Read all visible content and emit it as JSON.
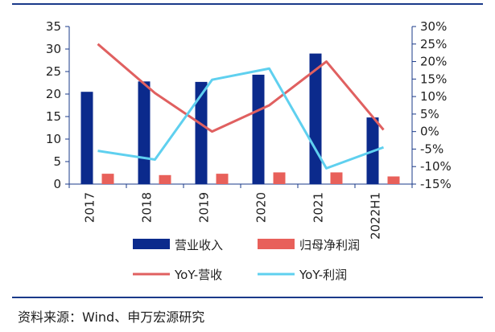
{
  "colors": {
    "revenue_bar": "#0b2a8c",
    "profit_bar": "#e8605a",
    "yoy_revenue_line": "#e06060",
    "yoy_profit_line": "#5fd0ef",
    "frame": "#1a3a8a"
  },
  "chart_data": {
    "type": "bar+line",
    "categories": [
      "2017",
      "2018",
      "2019",
      "2020",
      "2021",
      "2022H1"
    ],
    "left_axis": {
      "ylim": [
        0,
        35
      ],
      "ticks": [
        "0",
        "5",
        "10",
        "15",
        "20",
        "25",
        "30",
        "35"
      ]
    },
    "right_axis": {
      "ylim": [
        -15,
        30
      ],
      "unit": "%",
      "ticks": [
        "-15%",
        "-10%",
        "-5%",
        "0%",
        "5%",
        "10%",
        "15%",
        "20%",
        "25%",
        "30%"
      ]
    },
    "series": [
      {
        "name": "营业收入",
        "type": "bar",
        "axis": "left",
        "values": [
          20.5,
          22.8,
          22.7,
          24.3,
          29.0,
          14.8
        ]
      },
      {
        "name": "归母净利润",
        "type": "bar",
        "axis": "left",
        "values": [
          2.3,
          2.0,
          2.3,
          2.6,
          2.6,
          1.7
        ]
      },
      {
        "name": "YoY-营收",
        "type": "line",
        "axis": "right",
        "values": [
          25.0,
          11.0,
          0.0,
          7.5,
          20.0,
          0.5
        ]
      },
      {
        "name": "YoY-利润",
        "type": "line",
        "axis": "right",
        "values": [
          -5.5,
          -8.0,
          14.8,
          18.0,
          -10.5,
          -4.5
        ]
      }
    ],
    "legend_position": "bottom",
    "grid": false
  },
  "source": "资料来源：Wind、申万宏源研究"
}
